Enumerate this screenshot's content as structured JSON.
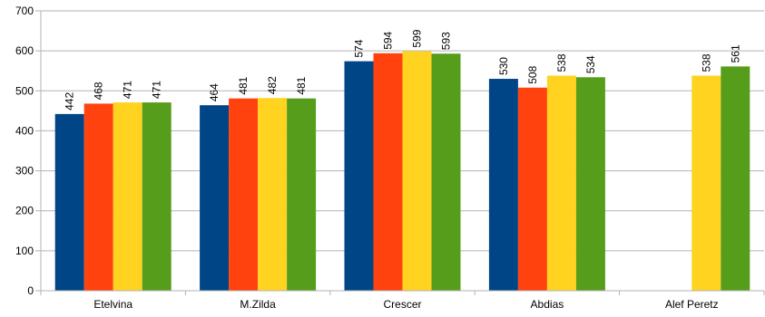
{
  "chart_data": {
    "type": "bar",
    "categories": [
      "Etelvina",
      "M.Zilda",
      "Crescer",
      "Abdias",
      "Alef Peretz"
    ],
    "series": [
      {
        "color": "#004586",
        "values": [
          442,
          464,
          574,
          530,
          null
        ]
      },
      {
        "color": "#ff420e",
        "values": [
          468,
          481,
          594,
          508,
          null
        ]
      },
      {
        "color": "#ffd320",
        "values": [
          471,
          482,
          599,
          538,
          538
        ]
      },
      {
        "color": "#579d1c",
        "values": [
          471,
          481,
          593,
          534,
          561
        ]
      }
    ],
    "ylim": [
      0,
      700
    ],
    "yticks": [
      "0",
      "100",
      "200",
      "300",
      "400",
      "500",
      "600",
      "700"
    ],
    "grid": true,
    "legend": "none",
    "data_labels": true
  }
}
